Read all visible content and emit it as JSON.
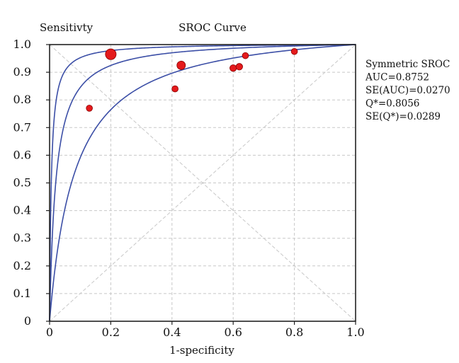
{
  "chart_data": {
    "type": "scatter",
    "title": "SROC Curve",
    "xlabel": "1-specificity",
    "ylabel": "Sensitivty",
    "xlim": [
      0,
      1
    ],
    "ylim": [
      0,
      1
    ],
    "xticks": [
      0,
      0.2,
      0.4,
      0.6,
      0.8,
      1.0
    ],
    "xtick_labels": [
      "0",
      "0.2",
      "0.4",
      "0.6",
      "0.8",
      "1.0"
    ],
    "yticks": [
      0,
      0.1,
      0.2,
      0.3,
      0.4,
      0.5,
      0.6,
      0.7,
      0.8,
      0.9,
      1.0
    ],
    "ytick_labels": [
      "0",
      "0.1",
      "0.2",
      "0.3",
      "0.4",
      "0.5",
      "0.6",
      "0.7",
      "0.8",
      "0.9",
      "1.0"
    ],
    "grid": true,
    "annotation": [
      "Symmetric SROC",
      "AUC=0.8752",
      "SE(AUC)=0.0270",
      "Q*=0.8056",
      "SE(Q*)=0.0289"
    ],
    "series": [
      {
        "kind": "points",
        "points": [
          {
            "x": 0.2,
            "y": 0.965,
            "weight": 3
          },
          {
            "x": 0.13,
            "y": 0.77,
            "weight": 1
          },
          {
            "x": 0.43,
            "y": 0.925,
            "weight": 2
          },
          {
            "x": 0.41,
            "y": 0.84,
            "weight": 1
          },
          {
            "x": 0.6,
            "y": 0.915,
            "weight": 1.2
          },
          {
            "x": 0.62,
            "y": 0.92,
            "weight": 1.2
          },
          {
            "x": 0.64,
            "y": 0.96,
            "weight": 1
          },
          {
            "x": 0.8,
            "y": 0.975,
            "weight": 1
          }
        ]
      },
      {
        "kind": "curve",
        "role": "sroc",
        "dor": 49
      },
      {
        "kind": "curve",
        "role": "ci-upper",
        "dor": 180
      },
      {
        "kind": "curve",
        "role": "ci-lower",
        "dor": 13
      }
    ],
    "colors": {
      "curve": "#3b4ea6",
      "point_fill": "#e41a1c",
      "point_stroke": "#8b0000",
      "grid": "#c8c8c8",
      "axis": "#222222"
    }
  }
}
